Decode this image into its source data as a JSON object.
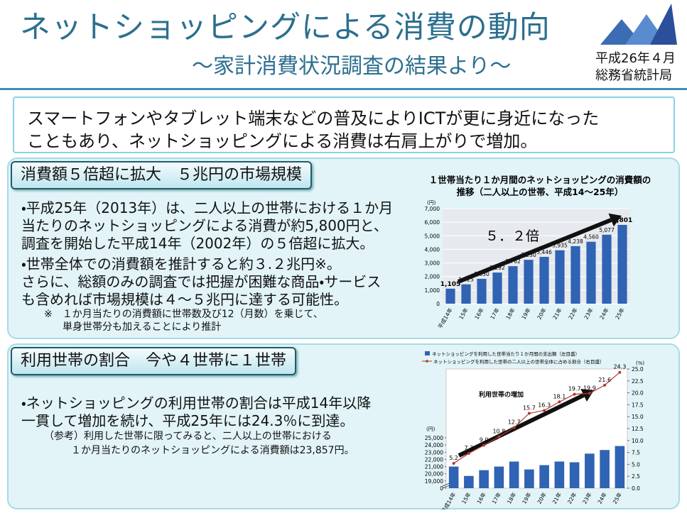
{
  "header": {
    "title": "ネットショッピングによる消費の動向",
    "subtitle": "～家計消費状況調査の結果より～",
    "date": "平成26年４月",
    "org": "総務省統計局"
  },
  "summary": [
    "スマートフォンやタブレット端末などの普及によりICTが更に身近になった",
    "こともあり、ネットショッピングによる消費は右肩上がりで増加。"
  ],
  "section1": {
    "heading": "消費額５倍超に拡大　５兆円の市場規模",
    "body": [
      "・平成25年（2013年）は、二人以上の世帯における１か月",
      "当たりのネットショッピングによる消費が約5,800円と、",
      "調査を開始した平成14年（2002年）の５倍超に拡大。",
      "・世帯全体での消費額を推計すると約３.２兆円※。",
      "さらに、総額のみの調査では把握が困難な商品・サービス",
      "も含めれば市場規模は４～５兆円に達する可能性。"
    ],
    "note": [
      "※　１か月当たりの消費額に世帯数及び12（月数）を乗じて、",
      "単身世帯分も加えることにより推計"
    ]
  },
  "section2": {
    "heading": "利用世帯の割合　今や４世帯に１世帯",
    "body": [
      "・ネットショッピングの利用世帯の割合は平成14年以降",
      "一貫して増加を続け、平成25年には24.3％に到達。"
    ],
    "note": [
      "（参考）利用した世帯に限ってみると、二人以上の世帯における",
      "１か月当たりのネットショッピングによる消費額は23,857円。"
    ]
  },
  "chart_data": [
    {
      "type": "bar",
      "title": [
        "１世帯当たり１か月間のネットショッピングの消費額の",
        "推移（二人以上の世帯、平成14～25年）"
      ],
      "y_unit": "(円)",
      "annotation": "５．２倍",
      "categories": [
        "平成14年",
        "15年",
        "16年",
        "17年",
        "18年",
        "19年",
        "20年",
        "21年",
        "22年",
        "23年",
        "24年",
        "25年"
      ],
      "values": [
        1105,
        1425,
        1830,
        2292,
        2762,
        3230,
        3446,
        3935,
        4238,
        4560,
        5077,
        5801
      ],
      "value_labels": [
        "1,105",
        "1,425",
        "1,830",
        "2,292",
        "2,762",
        "3,230",
        "3,446",
        "3,935",
        "4,238",
        "4,560",
        "5,077",
        "5,801"
      ],
      "color": "#2f63b3",
      "ylim": [
        0,
        7000
      ],
      "yticks": [
        0,
        {
          "value": 1000,
          "label": "1,000"
        },
        {
          "value": 2000,
          "label": "2,000"
        },
        {
          "value": 3000,
          "label": "3,000"
        },
        {
          "value": 4000,
          "label": "4,000"
        },
        {
          "value": 5000,
          "label": "5,000"
        },
        {
          "value": 6000,
          "label": "6,000"
        },
        {
          "value": 7000,
          "label": "7,000"
        }
      ],
      "grid": true
    },
    {
      "type": "combo",
      "y_unit": "(円)",
      "y2_unit": "(%)",
      "annotation": "利用世帯の増加",
      "categories": [
        "平成14年",
        "15年",
        "16年",
        "17年",
        "18年",
        "19年",
        "20年",
        "21年",
        "22年",
        "23年",
        "24年",
        "25年"
      ],
      "series": [
        {
          "name": "ネットショッピングを利用した世帯当たり１か月間の支出額（左目盛）",
          "type": "bar",
          "color": "#2f63b3",
          "values": [
            21000,
            19700,
            20500,
            21000,
            21700,
            20600,
            21200,
            21700,
            21600,
            22800,
            23300,
            23857
          ]
        },
        {
          "name": "ネットショッピングを利用した世帯の二人以上の世帯全体に占める割合（右目盛）",
          "type": "line",
          "axis": "y2",
          "color": "#b03a2e",
          "values": [
            5.2,
            7.3,
            9.0,
            10.8,
            12.7,
            15.7,
            16.3,
            18.1,
            19.7,
            19.9,
            21.6,
            24.3
          ],
          "value_labels": [
            "5.2",
            "7.3",
            "9.0",
            "10.8",
            "12.7",
            "15.7",
            "16.3",
            "18.1",
            "19.7",
            "19.9",
            "21.6",
            "24.3"
          ]
        }
      ],
      "axis_break": true,
      "ylim": [
        0,
        25000
      ],
      "yticks": [
        0,
        {
          "value": 19000,
          "label": "19,000"
        },
        {
          "value": 20000,
          "label": "20,000"
        },
        {
          "value": 21000,
          "label": "21,000"
        },
        {
          "value": 22000,
          "label": "22,000"
        },
        {
          "value": 23000,
          "label": "23,000"
        },
        {
          "value": 24000,
          "label": "24,000"
        },
        {
          "value": 25000,
          "label": "25,000"
        }
      ],
      "y2lim": [
        0,
        25
      ],
      "y2ticks": [
        {
          "value": 0,
          "label": "0.0"
        },
        2.5,
        {
          "value": 5,
          "label": "5.0"
        },
        7.5,
        {
          "value": 10,
          "label": "10.0"
        },
        12.5,
        {
          "value": 15,
          "label": "15.0"
        },
        17.5,
        {
          "value": 20,
          "label": "20.0"
        },
        22.5,
        {
          "value": 25,
          "label": "25.0"
        }
      ],
      "grid": false
    }
  ]
}
